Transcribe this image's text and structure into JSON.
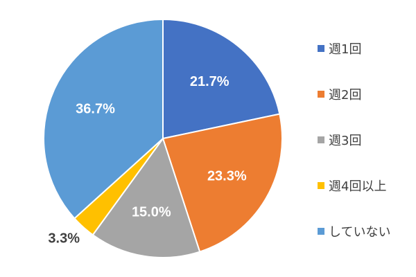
{
  "chart_data": {
    "type": "pie",
    "categories": [
      "週1回",
      "週2回",
      "週3回",
      "週4回以上",
      "していない"
    ],
    "values": [
      21.7,
      23.3,
      15.0,
      3.3,
      36.7
    ],
    "value_labels": [
      "21.7%",
      "23.3%",
      "15.0%",
      "3.3%",
      "36.7%"
    ],
    "colors": [
      "#4472C4",
      "#ED7D31",
      "#A5A5A5",
      "#FFC000",
      "#5B9BD5"
    ],
    "label_colors": [
      "#ffffff",
      "#ffffff",
      "#ffffff",
      "#404040",
      "#ffffff"
    ],
    "start_angle": "12 o'clock, clockwise",
    "legend_placement": "right"
  }
}
